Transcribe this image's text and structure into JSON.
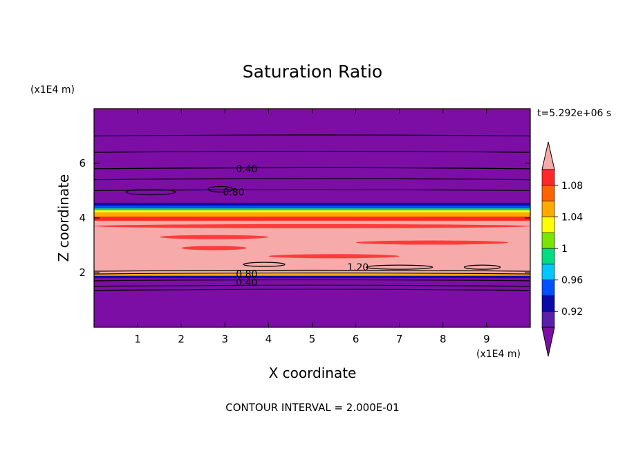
{
  "chart_data": {
    "type": "heatmap",
    "title": "Saturation Ratio",
    "xlabel": "X coordinate",
    "ylabel": "Z coordinate",
    "x_unit": "(x1E4 m)",
    "y_unit": "(x1E4 m)",
    "time_label": "t=5.292e+06 s",
    "footer": "CONTOUR INTERVAL = 2.000E-01",
    "xlim": [
      0,
      10
    ],
    "ylim": [
      0,
      8
    ],
    "x_ticks": [
      "1",
      "2",
      "3",
      "4",
      "5",
      "6",
      "7",
      "8",
      "9"
    ],
    "y_ticks": [
      "2",
      "4",
      "6"
    ],
    "contour_labels": [
      "0.40",
      "0.80",
      "1.20",
      "0.80",
      "0.40"
    ],
    "colorbar": {
      "levels": [
        {
          "value": 0.9,
          "color": "#5a20a8"
        },
        {
          "value": 0.92,
          "color": "#0a0aa8"
        },
        {
          "value": 0.94,
          "color": "#0050ff"
        },
        {
          "value": 0.96,
          "color": "#00c8ff"
        },
        {
          "value": 0.98,
          "color": "#00dc82"
        },
        {
          "value": 1.0,
          "color": "#78e600"
        },
        {
          "value": 1.02,
          "color": "#ffff00"
        },
        {
          "value": 1.04,
          "color": "#ffaa00"
        },
        {
          "value": 1.06,
          "color": "#ff6400"
        },
        {
          "value": 1.08,
          "color": "#ff2828"
        }
      ],
      "over_color": "#f7aaaa",
      "under_color": "#7c0ea6",
      "tick_labels": [
        "1.08",
        "1.04",
        "1",
        "0.96",
        "0.92"
      ]
    },
    "field_description_bands": [
      {
        "z": [
          0,
          1.9
        ],
        "color": "#7c0ea6"
      },
      {
        "z": [
          1.9,
          3.9
        ],
        "color": "#f7aaaa"
      },
      {
        "z": [
          3.9,
          4.5
        ],
        "color": "#ff2828"
      },
      {
        "z": [
          4.5,
          8.0
        ],
        "color": "#7c0ea6"
      }
    ]
  }
}
